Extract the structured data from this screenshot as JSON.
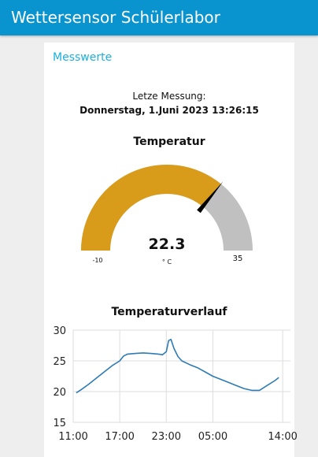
{
  "header": {
    "title": "Wettersensor Schülerlabor"
  },
  "group": {
    "title": "Messwerte"
  },
  "last_measurement": {
    "label": "Letze Messung:",
    "value": "Donnerstag, 1.Juni 2023 13:26:15"
  },
  "gauge": {
    "title": "Temperatur",
    "value": 22.3,
    "value_text": "22.3",
    "unit": "° C",
    "min": -10,
    "max": 35,
    "min_label": "-10",
    "max_label": "35",
    "colors": {
      "fill": "#d99b1a",
      "track": "#c0c0c0",
      "needle": "#000000"
    }
  },
  "chart_title": "Temperaturverlauf",
  "chart_data": {
    "type": "line",
    "title": "Temperaturverlauf",
    "xlabel": "",
    "ylabel": "",
    "x_ticks": [
      "11:00",
      "17:00",
      "23:00",
      "05:00",
      "14:00"
    ],
    "x_tick_hours": [
      0,
      6,
      12,
      18,
      27
    ],
    "y_ticks": [
      15,
      20,
      25,
      30
    ],
    "ylim": [
      15,
      30
    ],
    "grid": true,
    "color": "#2e7bb6",
    "series": [
      {
        "x": [
          0.4,
          1,
          2,
          3,
          4,
          5,
          6,
          6.5,
          7,
          8,
          9,
          10,
          11,
          11.5,
          12,
          12.3,
          12.6,
          13,
          13.5,
          14,
          15,
          16,
          17,
          18,
          19,
          20,
          21,
          22,
          23,
          24,
          25,
          26,
          26.5
        ],
        "values": [
          19.8,
          20.3,
          21.2,
          22.2,
          23.2,
          24.2,
          25.0,
          25.8,
          26.1,
          26.2,
          26.3,
          26.2,
          26.1,
          26.0,
          26.5,
          28.3,
          28.5,
          27.0,
          25.7,
          25.0,
          24.4,
          23.9,
          23.2,
          22.5,
          22.0,
          21.5,
          21.0,
          20.5,
          20.2,
          20.2,
          21.0,
          21.8,
          22.3
        ]
      }
    ]
  }
}
